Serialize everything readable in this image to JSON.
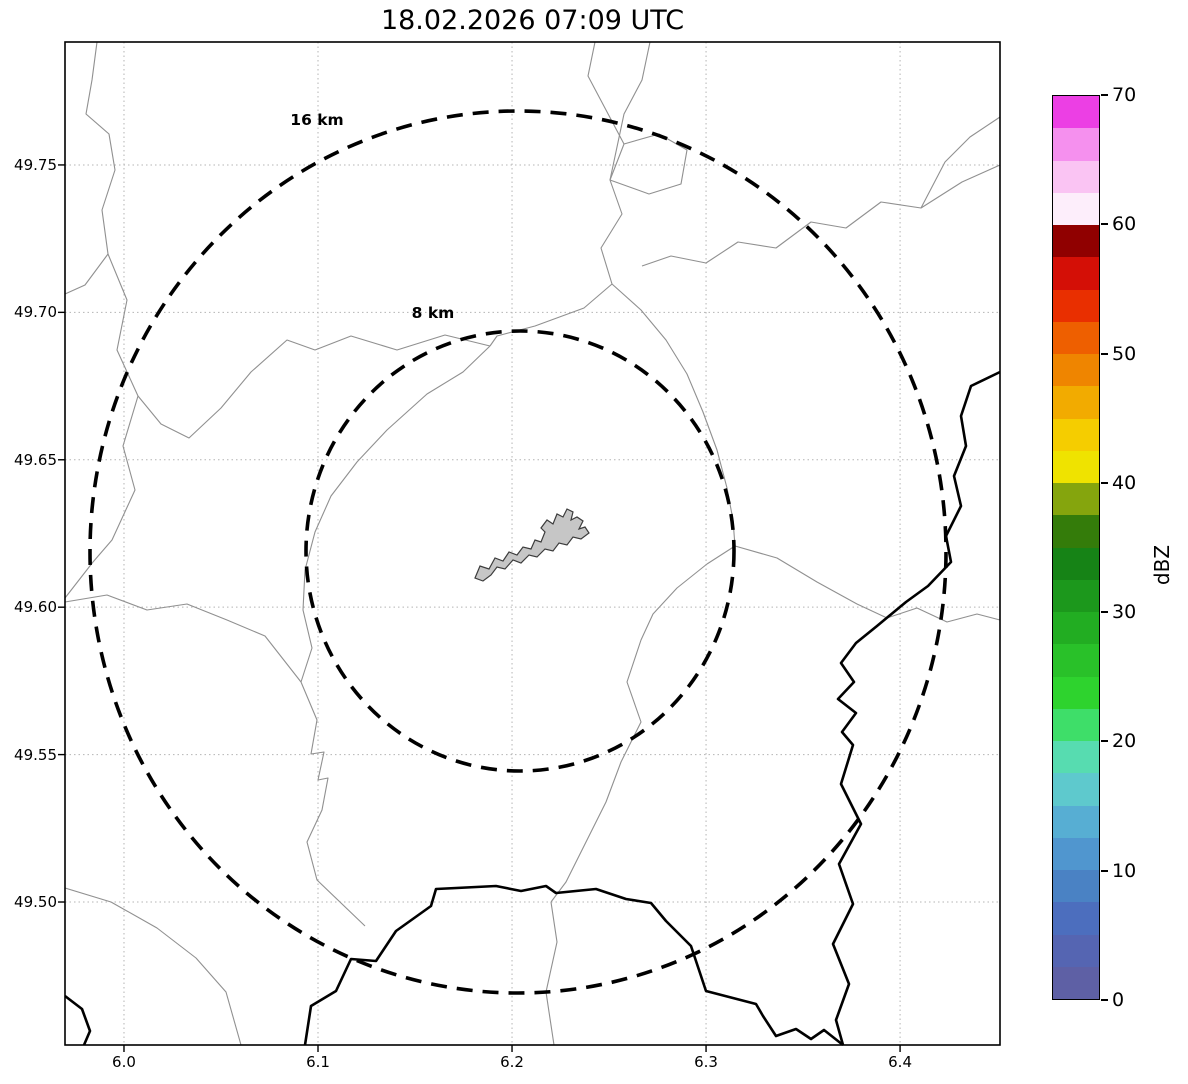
{
  "chart_data": {
    "type": "map",
    "title": "18.02.2026 07:09 UTC",
    "x_ticks": [
      "6.0",
      "6.1",
      "6.2",
      "6.3",
      "6.4"
    ],
    "y_ticks": [
      "49.75",
      "49.70",
      "49.65",
      "49.60",
      "49.55",
      "49.50"
    ],
    "xlim": [
      5.9696,
      6.4515
    ],
    "ylim": [
      49.4515,
      49.7917
    ],
    "grid": true,
    "range_rings": [
      {
        "label": "16 km",
        "radius_km": 16
      },
      {
        "label": "8 km",
        "radius_km": 8
      }
    ],
    "ring_center_lon": 6.203,
    "ring_center_lat": 49.62,
    "reflectivity_echoes": [],
    "colorbar": {
      "label": "dBZ",
      "vmin": 0,
      "vmax": 70,
      "ticks": [
        "0",
        "10",
        "20",
        "30",
        "40",
        "50",
        "60",
        "70"
      ],
      "colors_bottom_to_top": [
        "#5e60a5",
        "#5565b2",
        "#4c6ebe",
        "#4a82c4",
        "#5096cf",
        "#57aed3",
        "#5ec9cd",
        "#57dcb0",
        "#3ede69",
        "#2ed32e",
        "#29c129",
        "#22ad22",
        "#1c981c",
        "#168316",
        "#347c0a",
        "#85a50d",
        "#efe300",
        "#f5cd00",
        "#f2ab00",
        "#ef8500",
        "#ee5f00",
        "#e92f00",
        "#d40f06",
        "#900000",
        "#fdeefb",
        "#fac4f3",
        "#f590ee",
        "#ec3fe4"
      ]
    }
  }
}
